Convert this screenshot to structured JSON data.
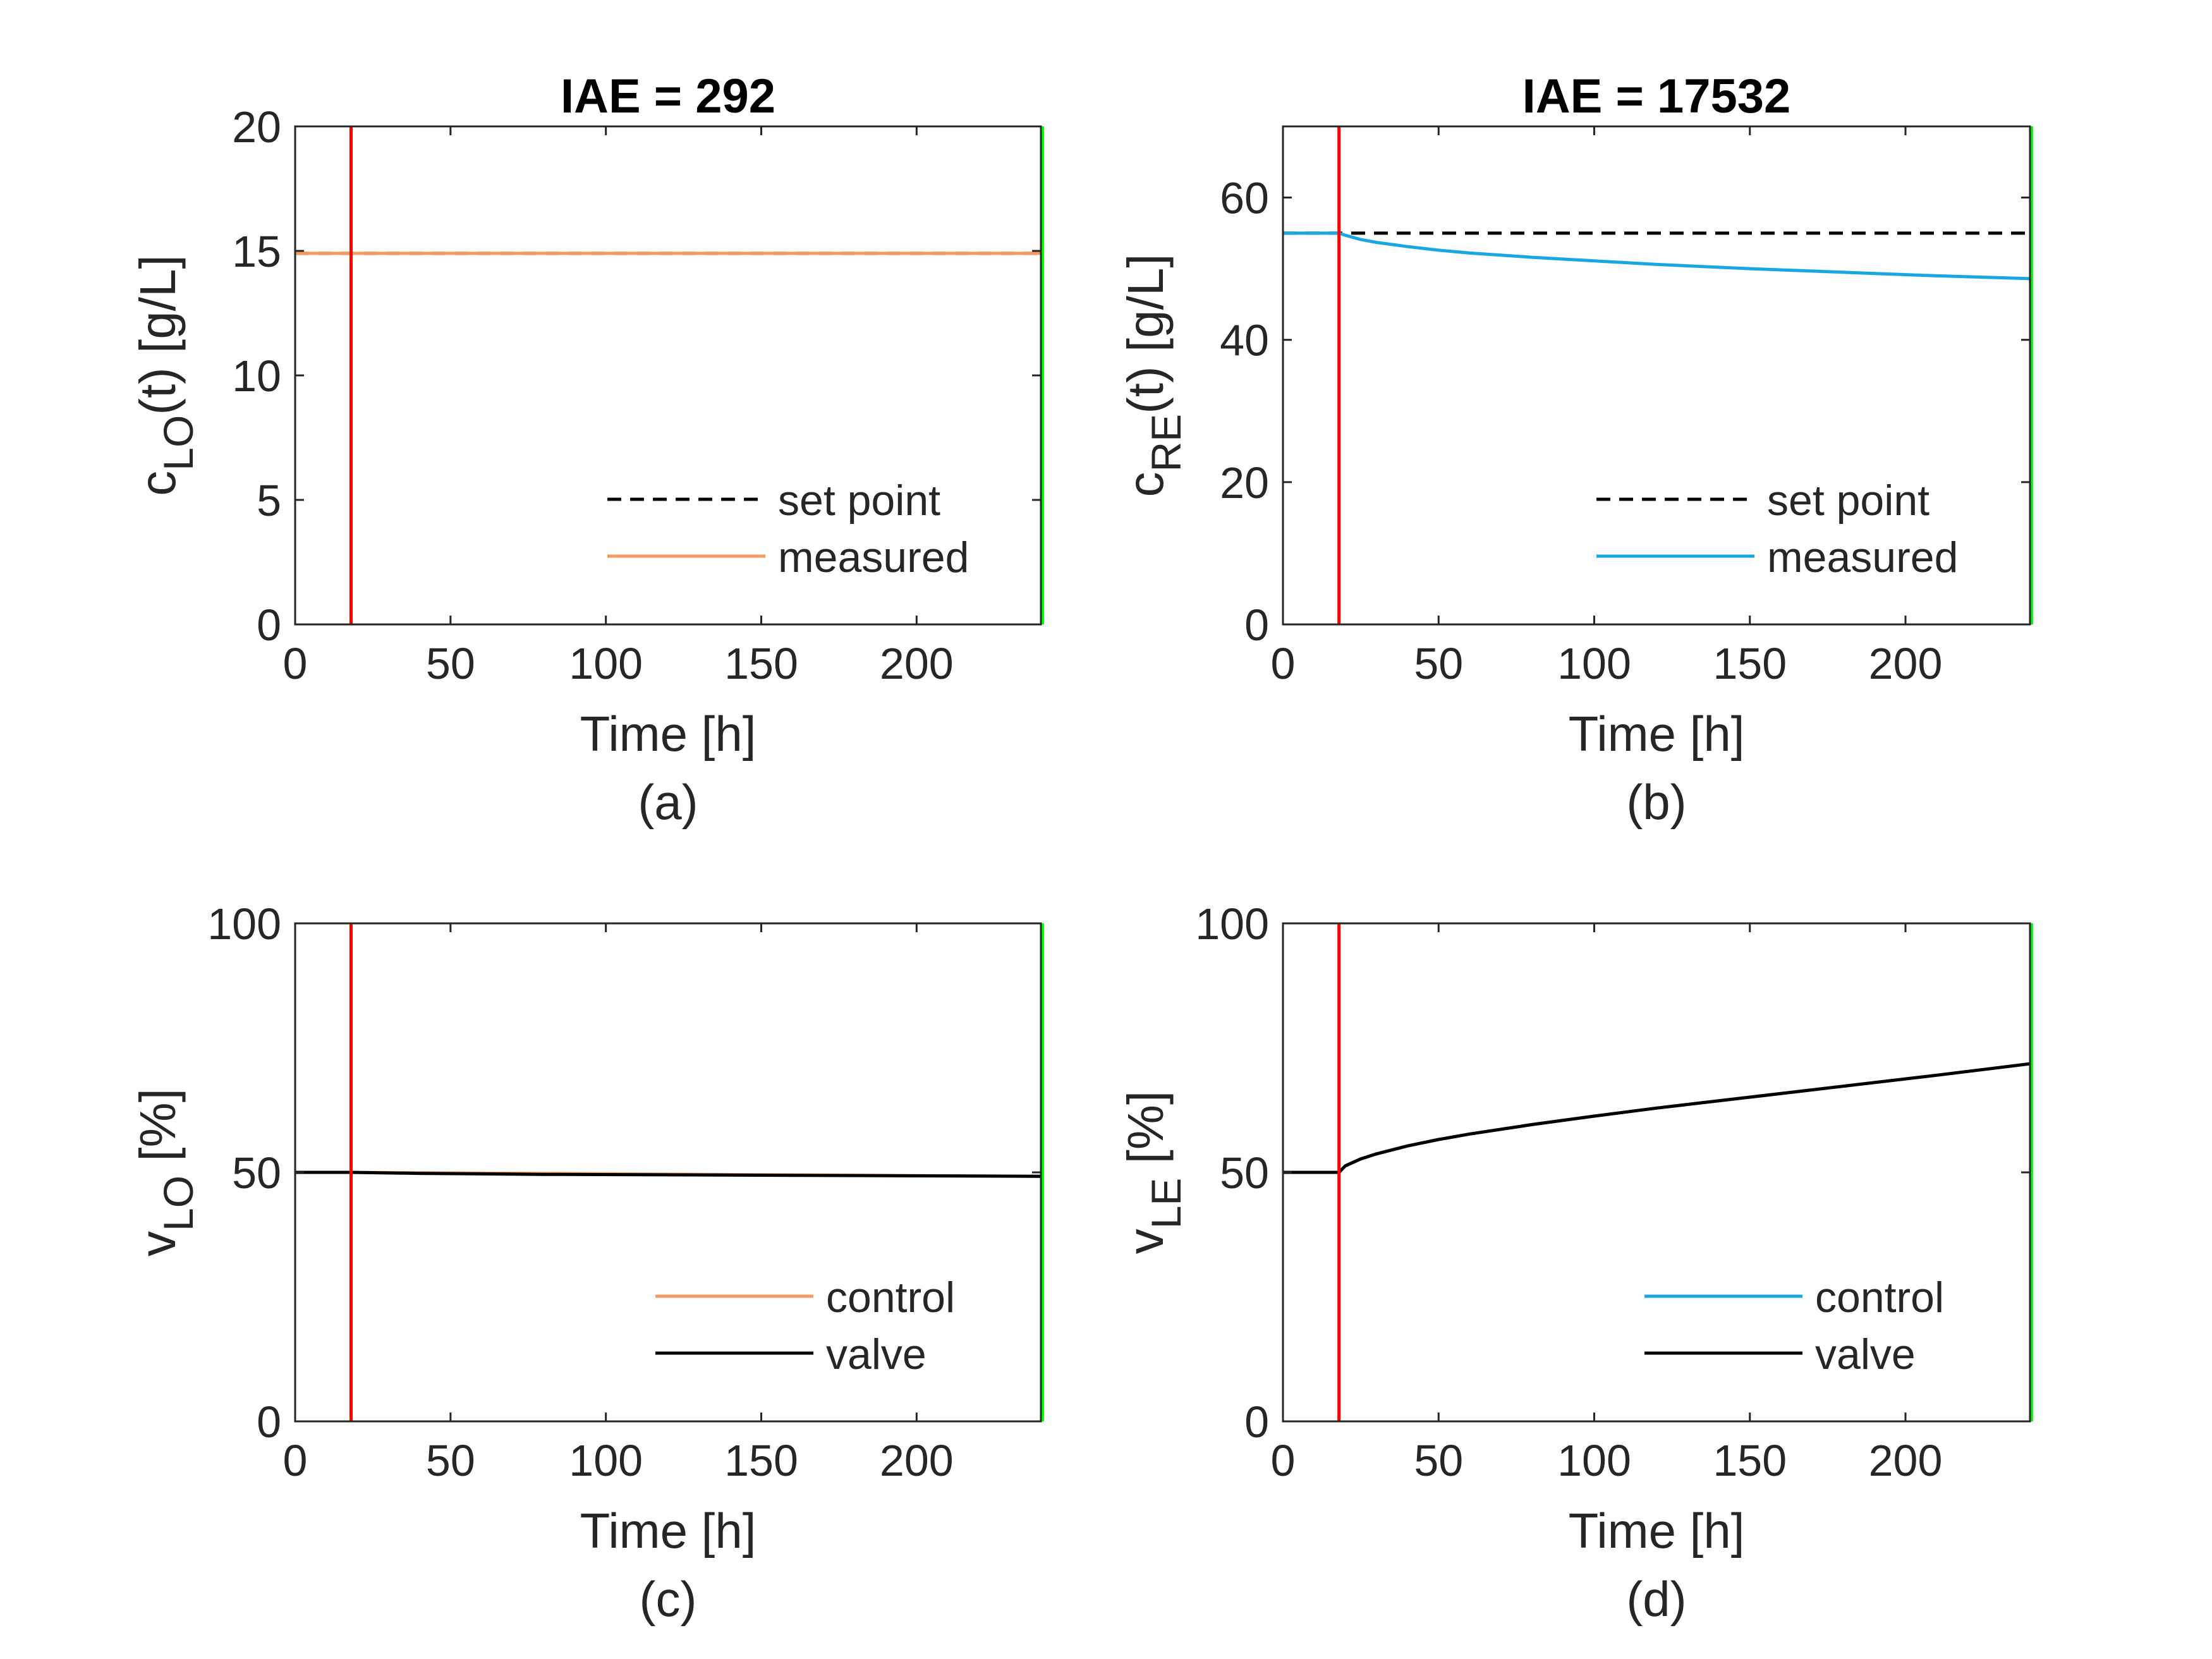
{
  "figure": {
    "colors": {
      "setpoint": "#000000",
      "orange": "#F79A62",
      "blue": "#19A7E3",
      "valve": "#000000",
      "red_line": "#FF0000",
      "green_line": "#00FF00",
      "axes": "#262626"
    },
    "fault_time": 18,
    "end_time": 240
  },
  "chart_data": [
    {
      "id": "a",
      "type": "line",
      "title": "IAE = 292",
      "caption": "(a)",
      "xlabel": "Time [h]",
      "ylabel": {
        "main": "c",
        "sub": "LO",
        "rest": "(t) [g/L]"
      },
      "xlim": [
        0,
        240
      ],
      "ylim": [
        0,
        20
      ],
      "xticks": [
        0,
        50,
        100,
        150,
        200
      ],
      "yticks": [
        0,
        5,
        10,
        15,
        20
      ],
      "legend_position": "bottom-right",
      "series": [
        {
          "name": "set point",
          "style": "dashed",
          "color": "#000000",
          "x": [
            0,
            240
          ],
          "y": [
            14.9,
            14.9
          ]
        },
        {
          "name": "measured",
          "style": "solid",
          "color": "#F79A62",
          "x": [
            0,
            240
          ],
          "y": [
            14.9,
            14.9
          ]
        }
      ]
    },
    {
      "id": "b",
      "type": "line",
      "title": "IAE = 17532",
      "caption": "(b)",
      "xlabel": "Time [h]",
      "ylabel": {
        "main": "c",
        "sub": "RE",
        "rest": "(t) [g/L]"
      },
      "xlim": [
        0,
        240
      ],
      "ylim": [
        0,
        70
      ],
      "xticks": [
        0,
        50,
        100,
        150,
        200
      ],
      "yticks": [
        0,
        20,
        40,
        60
      ],
      "legend_position": "bottom-right",
      "series": [
        {
          "name": "set point",
          "style": "dashed",
          "color": "#000000",
          "x": [
            0,
            240
          ],
          "y": [
            55,
            55
          ]
        },
        {
          "name": "measured",
          "style": "solid",
          "color": "#19A7E3",
          "x": [
            0,
            18,
            20,
            25,
            30,
            40,
            50,
            60,
            80,
            100,
            120,
            150,
            180,
            210,
            240
          ],
          "y": [
            55,
            55,
            54.7,
            54.1,
            53.7,
            53.1,
            52.6,
            52.2,
            51.6,
            51.1,
            50.6,
            50.0,
            49.5,
            49.0,
            48.6
          ]
        }
      ]
    },
    {
      "id": "c",
      "type": "line",
      "title": "",
      "caption": "(c)",
      "xlabel": "Time [h]",
      "ylabel": {
        "main": "v",
        "sub": "LO",
        "rest": " [%]"
      },
      "xlim": [
        0,
        240
      ],
      "ylim": [
        0,
        100
      ],
      "xticks": [
        0,
        50,
        100,
        150,
        200
      ],
      "yticks": [
        0,
        50,
        100
      ],
      "legend_position": "bottom-right",
      "series": [
        {
          "name": "control",
          "style": "solid",
          "color": "#F79A62",
          "x": [
            0,
            18,
            240
          ],
          "y": [
            50,
            50,
            49.2
          ]
        },
        {
          "name": "valve",
          "style": "solid",
          "color": "#000000",
          "x": [
            0,
            18,
            40,
            80,
            120,
            160,
            200,
            240
          ],
          "y": [
            50,
            50,
            49.8,
            49.6,
            49.5,
            49.4,
            49.3,
            49.2
          ]
        }
      ]
    },
    {
      "id": "d",
      "type": "line",
      "title": "",
      "caption": "(d)",
      "xlabel": "Time [h]",
      "ylabel": {
        "main": "v",
        "sub": "LE",
        "rest": " [%]"
      },
      "xlim": [
        0,
        240
      ],
      "ylim": [
        0,
        100
      ],
      "xticks": [
        0,
        50,
        100,
        150,
        200
      ],
      "yticks": [
        0,
        50,
        100
      ],
      "legend_position": "bottom-right",
      "series": [
        {
          "name": "control",
          "style": "solid",
          "color": "#19A7E3",
          "x": [
            0,
            18,
            20,
            25,
            30,
            40,
            50,
            60,
            80,
            100,
            120,
            150,
            180,
            210,
            240
          ],
          "y": [
            50,
            50,
            51.3,
            52.7,
            53.7,
            55.3,
            56.6,
            57.7,
            59.6,
            61.3,
            62.9,
            65.1,
            67.3,
            69.5,
            71.8
          ]
        },
        {
          "name": "valve",
          "style": "solid",
          "color": "#000000",
          "x": [
            0,
            18,
            20,
            25,
            30,
            40,
            50,
            60,
            80,
            100,
            120,
            150,
            180,
            210,
            240
          ],
          "y": [
            50,
            50,
            51.3,
            52.7,
            53.7,
            55.3,
            56.6,
            57.7,
            59.6,
            61.3,
            62.9,
            65.1,
            67.3,
            69.5,
            71.8
          ]
        }
      ]
    }
  ]
}
